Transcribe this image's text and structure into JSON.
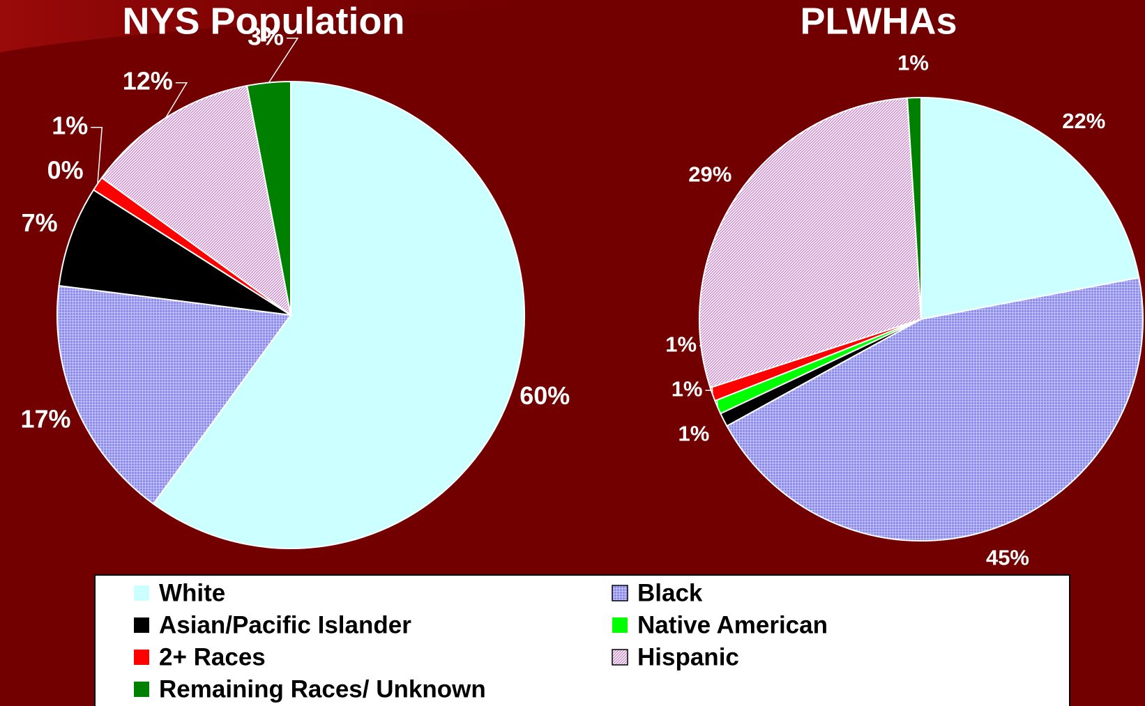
{
  "chart_data": [
    {
      "type": "pie",
      "title": "NYS Population",
      "categories": [
        "White",
        "Black",
        "Asian/Pacific Islander",
        "Native American",
        "2+ Races",
        "Hispanic",
        "Remaining Races/ Unknown"
      ],
      "values": [
        60,
        17,
        7,
        0,
        1,
        12,
        3
      ],
      "value_labels": [
        "60%",
        "17%",
        "7%",
        "0%",
        "1%",
        "12%",
        "3%"
      ],
      "colors": [
        "#ccffff",
        "#8c8cf0",
        "#000000",
        "#00ff00",
        "#ff0000",
        "#cc88cc",
        "#008000"
      ],
      "fills": [
        "solid",
        "grid",
        "solid",
        "solid",
        "solid",
        "diagonal",
        "solid"
      ]
    },
    {
      "type": "pie",
      "title": "PLWHAs",
      "categories": [
        "White",
        "Black",
        "Asian/Pacific Islander",
        "Native American",
        "2+ Races",
        "Hispanic",
        "Remaining Races/ Unknown"
      ],
      "values": [
        22,
        45,
        1,
        1,
        1,
        29,
        1
      ],
      "value_labels": [
        "22%",
        "45%",
        "1%",
        "1%",
        "1%",
        "29%",
        "1%"
      ],
      "colors": [
        "#ccffff",
        "#8c8cf0",
        "#000000",
        "#00ff00",
        "#ff0000",
        "#cc88cc",
        "#008000"
      ],
      "fills": [
        "solid",
        "grid",
        "solid",
        "solid",
        "solid",
        "diagonal",
        "solid"
      ]
    }
  ]
}
